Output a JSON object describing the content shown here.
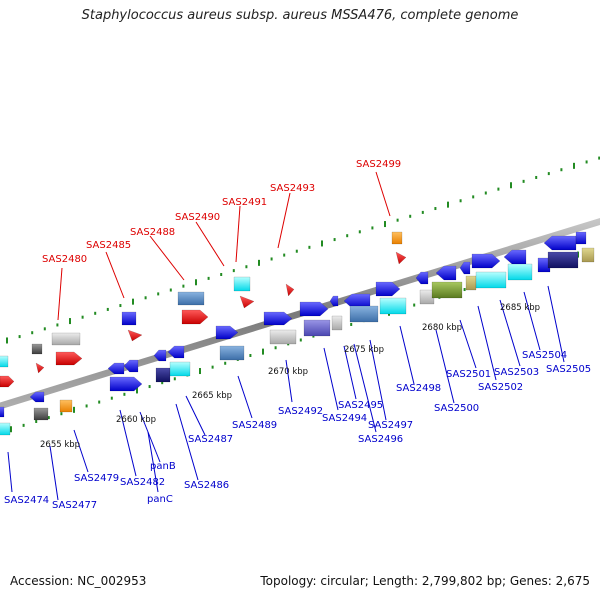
{
  "title": "Staphylococcus aureus subsp. aureus MSSA476, complete genome",
  "footer": {
    "accession": "Accession: NC_002953",
    "summary": "Topology: circular; Length: 2,799,802 bp; Genes: 2,675"
  },
  "colors": {
    "backbone": "#909090",
    "tick": "#228b22",
    "label_red": "#dd0000",
    "label_blue": "#0000cc"
  },
  "ruler": [
    {
      "label": "2655 kbp"
    },
    {
      "label": "2660 kbp"
    },
    {
      "label": "2665 kbp"
    },
    {
      "label": "2670 kbp"
    },
    {
      "label": "2675 kbp"
    },
    {
      "label": "2680 kbp"
    },
    {
      "label": "2685 kbp"
    }
  ],
  "red_labels": [
    {
      "label": "SAS2480"
    },
    {
      "label": "SAS2485"
    },
    {
      "label": "SAS2488"
    },
    {
      "label": "SAS2490"
    },
    {
      "label": "SAS2491"
    },
    {
      "label": "SAS2493"
    },
    {
      "label": "SAS2499"
    }
  ],
  "blue_labels": [
    {
      "label": "SAS2474"
    },
    {
      "label": "SAS2477"
    },
    {
      "label": "SAS2479"
    },
    {
      "label": "SAS2482"
    },
    {
      "label": "panB"
    },
    {
      "label": "panC"
    },
    {
      "label": "SAS2486"
    },
    {
      "label": "SAS2487"
    },
    {
      "label": "SAS2489"
    },
    {
      "label": "SAS2492"
    },
    {
      "label": "SAS2494"
    },
    {
      "label": "SAS2495"
    },
    {
      "label": "SAS2496"
    },
    {
      "label": "SAS2497"
    },
    {
      "label": "SAS2498"
    },
    {
      "label": "SAS2500"
    },
    {
      "label": "SAS2501"
    },
    {
      "label": "SAS2502"
    },
    {
      "label": "SAS2503"
    },
    {
      "label": "SAS2504"
    },
    {
      "label": "SAS2505"
    }
  ]
}
